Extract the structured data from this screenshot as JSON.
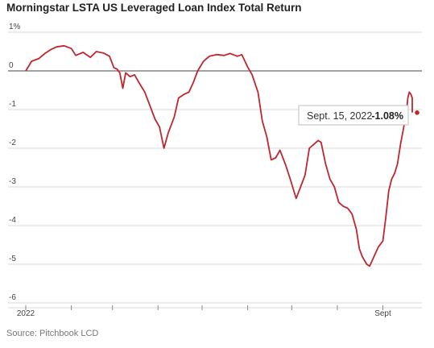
{
  "title": "Morningstar LSTA US Leveraged Loan Index Total Return",
  "source": "Source: Pitchbook LCD",
  "chart_data": {
    "type": "line",
    "title": "Morningstar LSTA US Leveraged Loan Index Total Return",
    "xlabel": "",
    "ylabel": "",
    "ylim": [
      -6,
      1
    ],
    "y_ticks": [
      "1%",
      "0",
      "-1",
      "-2",
      "-3",
      "-4",
      "-5",
      "-6"
    ],
    "x_tick_labels": [
      "2022",
      "Sept"
    ],
    "x_range": [
      "2022-01-01",
      "2022-09-21"
    ],
    "grid": true,
    "line_color": "#c0262d",
    "annotation": {
      "label": "Sept. 15, 2022",
      "value": "-1.08%"
    },
    "series": [
      {
        "points": [
          [
            "2022-01-01",
            0.0
          ],
          [
            "2022-01-05",
            0.25
          ],
          [
            "2022-01-10",
            0.32
          ],
          [
            "2022-01-14",
            0.45
          ],
          [
            "2022-01-18",
            0.55
          ],
          [
            "2022-01-22",
            0.62
          ],
          [
            "2022-01-27",
            0.65
          ],
          [
            "2022-02-01",
            0.58
          ],
          [
            "2022-02-04",
            0.4
          ],
          [
            "2022-02-09",
            0.48
          ],
          [
            "2022-02-14",
            0.35
          ],
          [
            "2022-02-18",
            0.5
          ],
          [
            "2022-02-23",
            0.46
          ],
          [
            "2022-02-27",
            0.38
          ],
          [
            "2022-03-02",
            0.08
          ],
          [
            "2022-03-04",
            0.05
          ],
          [
            "2022-03-06",
            -0.05
          ],
          [
            "2022-03-08",
            -0.45
          ],
          [
            "2022-03-10",
            -0.05
          ],
          [
            "2022-03-13",
            -0.15
          ],
          [
            "2022-03-16",
            -0.1
          ],
          [
            "2022-03-19",
            -0.3
          ],
          [
            "2022-03-23",
            -0.55
          ],
          [
            "2022-03-26",
            -0.85
          ],
          [
            "2022-03-30",
            -1.25
          ],
          [
            "2022-04-02",
            -1.45
          ],
          [
            "2022-04-05",
            -2.0
          ],
          [
            "2022-04-08",
            -1.6
          ],
          [
            "2022-04-12",
            -1.2
          ],
          [
            "2022-04-15",
            -0.7
          ],
          [
            "2022-04-19",
            -0.6
          ],
          [
            "2022-04-22",
            -0.55
          ],
          [
            "2022-04-25",
            -0.3
          ],
          [
            "2022-04-28",
            0.0
          ],
          [
            "2022-05-02",
            0.25
          ],
          [
            "2022-05-06",
            0.38
          ],
          [
            "2022-05-11",
            0.42
          ],
          [
            "2022-05-16",
            0.4
          ],
          [
            "2022-05-20",
            0.45
          ],
          [
            "2022-05-25",
            0.38
          ],
          [
            "2022-05-28",
            0.42
          ],
          [
            "2022-06-01",
            0.1
          ],
          [
            "2022-06-04",
            -0.1
          ],
          [
            "2022-06-08",
            -0.55
          ],
          [
            "2022-06-11",
            -1.3
          ],
          [
            "2022-06-14",
            -1.7
          ],
          [
            "2022-06-17",
            -2.3
          ],
          [
            "2022-06-20",
            -2.25
          ],
          [
            "2022-06-23",
            -2.05
          ],
          [
            "2022-06-27",
            -2.45
          ],
          [
            "2022-06-30",
            -2.8
          ],
          [
            "2022-07-04",
            -3.3
          ],
          [
            "2022-07-07",
            -3.0
          ],
          [
            "2022-07-10",
            -2.7
          ],
          [
            "2022-07-13",
            -2.0
          ],
          [
            "2022-07-16",
            -1.9
          ],
          [
            "2022-07-19",
            -1.8
          ],
          [
            "2022-07-21",
            -1.85
          ],
          [
            "2022-07-24",
            -2.4
          ],
          [
            "2022-07-27",
            -2.8
          ],
          [
            "2022-07-30",
            -3.0
          ],
          [
            "2022-08-02",
            -3.4
          ],
          [
            "2022-08-05",
            -3.5
          ],
          [
            "2022-08-08",
            -3.55
          ],
          [
            "2022-08-11",
            -3.7
          ],
          [
            "2022-08-14",
            -4.1
          ],
          [
            "2022-08-16",
            -4.6
          ],
          [
            "2022-08-18",
            -4.8
          ],
          [
            "2022-08-21",
            -5.0
          ],
          [
            "2022-08-23",
            -5.05
          ],
          [
            "2022-08-26",
            -4.8
          ],
          [
            "2022-08-29",
            -4.55
          ],
          [
            "2022-09-01",
            -4.4
          ],
          [
            "2022-09-03",
            -3.8
          ],
          [
            "2022-09-05",
            -3.1
          ],
          [
            "2022-09-07",
            -2.8
          ],
          [
            "2022-09-09",
            -2.65
          ],
          [
            "2022-09-11",
            -2.4
          ],
          [
            "2022-09-13",
            -1.9
          ],
          [
            "2022-09-15",
            -1.5
          ],
          [
            "2022-09-17",
            -1.1
          ],
          [
            "2022-09-18",
            -0.7
          ],
          [
            "2022-09-19",
            -0.55
          ],
          [
            "2022-09-20",
            -0.6
          ],
          [
            "2022-09-21",
            -0.7
          ],
          [
            "2022-09-21",
            -1.08
          ]
        ]
      }
    ]
  }
}
